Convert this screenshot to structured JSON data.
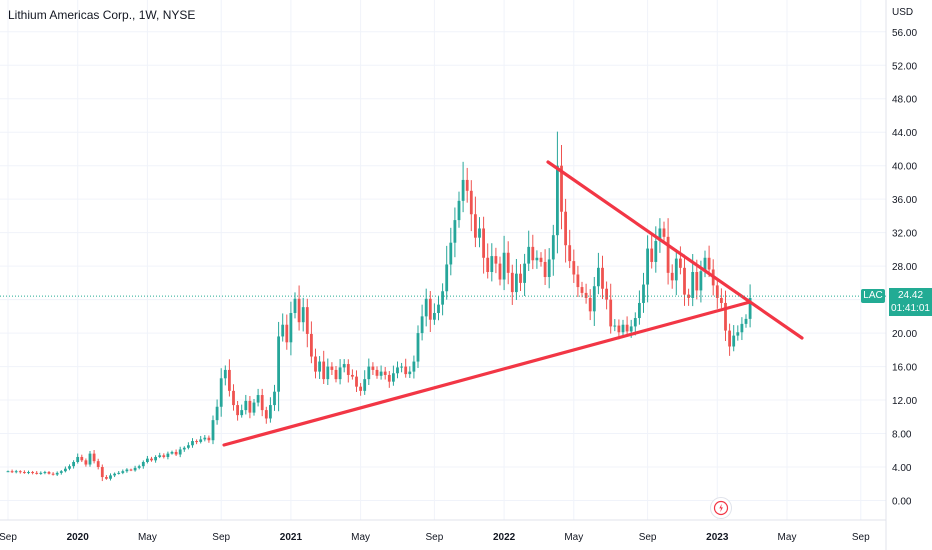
{
  "header": {
    "title": "Lithium Americas Corp., 1W, NYSE"
  },
  "price_scale": {
    "currency": "USD"
  },
  "current": {
    "symbol": "LAC",
    "price": "24.42",
    "countdown": "01:41:01"
  },
  "colors": {
    "up": "#26a69a",
    "down": "#ef5350",
    "trendline": "#f23645",
    "tag": "#22ab94",
    "grid": "#f0f3fa"
  },
  "icons": {
    "lightning": "lightning-icon"
  },
  "chart_data": {
    "type": "candlestick",
    "title": "Lithium Americas Corp., 1W, NYSE",
    "y_axis": {
      "unit": "USD",
      "range": [
        -3,
        58
      ],
      "ticks": [
        "0.00",
        "4.00",
        "8.00",
        "12.00",
        "16.00",
        "20.00",
        "24.00",
        "28.00",
        "32.00",
        "36.00",
        "40.00",
        "44.00",
        "48.00",
        "52.00",
        "56.00"
      ]
    },
    "x_ticks": [
      {
        "label": "Sep",
        "t": 0
      },
      {
        "label": "2020",
        "t": 17,
        "bold": true
      },
      {
        "label": "May",
        "t": 34
      },
      {
        "label": "Sep",
        "t": 52
      },
      {
        "label": "2021",
        "t": 69,
        "bold": true
      },
      {
        "label": "May",
        "t": 86
      },
      {
        "label": "Sep",
        "t": 104
      },
      {
        "label": "2022",
        "t": 121,
        "bold": true
      },
      {
        "label": "May",
        "t": 138
      },
      {
        "label": "Sep",
        "t": 156
      },
      {
        "label": "2023",
        "t": 173,
        "bold": true
      },
      {
        "label": "May",
        "t": 190
      },
      {
        "label": "Sep",
        "t": 208
      }
    ],
    "closes": [
      3.5,
      3.4,
      3.5,
      3.4,
      3.3,
      3.4,
      3.3,
      3.2,
      3.3,
      3.4,
      3.2,
      3.1,
      3.3,
      3.5,
      3.8,
      4.1,
      4.6,
      5.2,
      4.8,
      4.3,
      5.6,
      4.7,
      4.0,
      2.8,
      2.6,
      3.0,
      3.2,
      3.3,
      3.5,
      3.7,
      3.6,
      3.9,
      4.1,
      4.6,
      5.0,
      4.8,
      5.2,
      5.4,
      5.2,
      5.6,
      5.8,
      5.5,
      6.1,
      6.3,
      6.6,
      7.1,
      7.0,
      7.3,
      7.5,
      7.2,
      9.6,
      11.2,
      14.6,
      15.6,
      13.1,
      11.4,
      10.2,
      10.8,
      11.9,
      10.5,
      11.7,
      12.6,
      10.8,
      9.8,
      11.4,
      13.0,
      19.6,
      21.0,
      18.9,
      22.4,
      24.1,
      21.3,
      23.1,
      19.9,
      17.2,
      15.4,
      16.6,
      14.5,
      16.0,
      15.6,
      14.5,
      15.9,
      16.3,
      15.0,
      14.8,
      13.6,
      13.1,
      14.5,
      16.0,
      15.6,
      14.9,
      15.4,
      15.0,
      14.2,
      15.2,
      15.9,
      16.0,
      15.1,
      15.4,
      16.6,
      20.0,
      22.0,
      24.1,
      21.6,
      22.4,
      23.4,
      25.0,
      28.2,
      30.8,
      33.5,
      35.8,
      38.3,
      37.0,
      34.2,
      31.4,
      32.5,
      29.0,
      27.3,
      29.2,
      28.3,
      26.4,
      29.6,
      27.2,
      24.9,
      27.1,
      26.0,
      28.3,
      30.3,
      28.7,
      29.0,
      28.5,
      26.7,
      28.8,
      31.7,
      40.0,
      34.5,
      30.5,
      28.6,
      27.0,
      25.5,
      24.8,
      24.2,
      22.6,
      25.6,
      27.8,
      25.3,
      24.0,
      20.8,
      20.9,
      20.1,
      21.0,
      20.2,
      20.8,
      21.8,
      23.6,
      25.8,
      30.1,
      28.5,
      31.0,
      32.5,
      31.5,
      27.2,
      26.3,
      28.9,
      27.8,
      24.6,
      24.2,
      27.3,
      25.1,
      27.4,
      29.0,
      27.6,
      25.7,
      24.2,
      23.6,
      20.3,
      18.4,
      19.7,
      20.1,
      21.1,
      21.7,
      24.2
    ]
  }
}
